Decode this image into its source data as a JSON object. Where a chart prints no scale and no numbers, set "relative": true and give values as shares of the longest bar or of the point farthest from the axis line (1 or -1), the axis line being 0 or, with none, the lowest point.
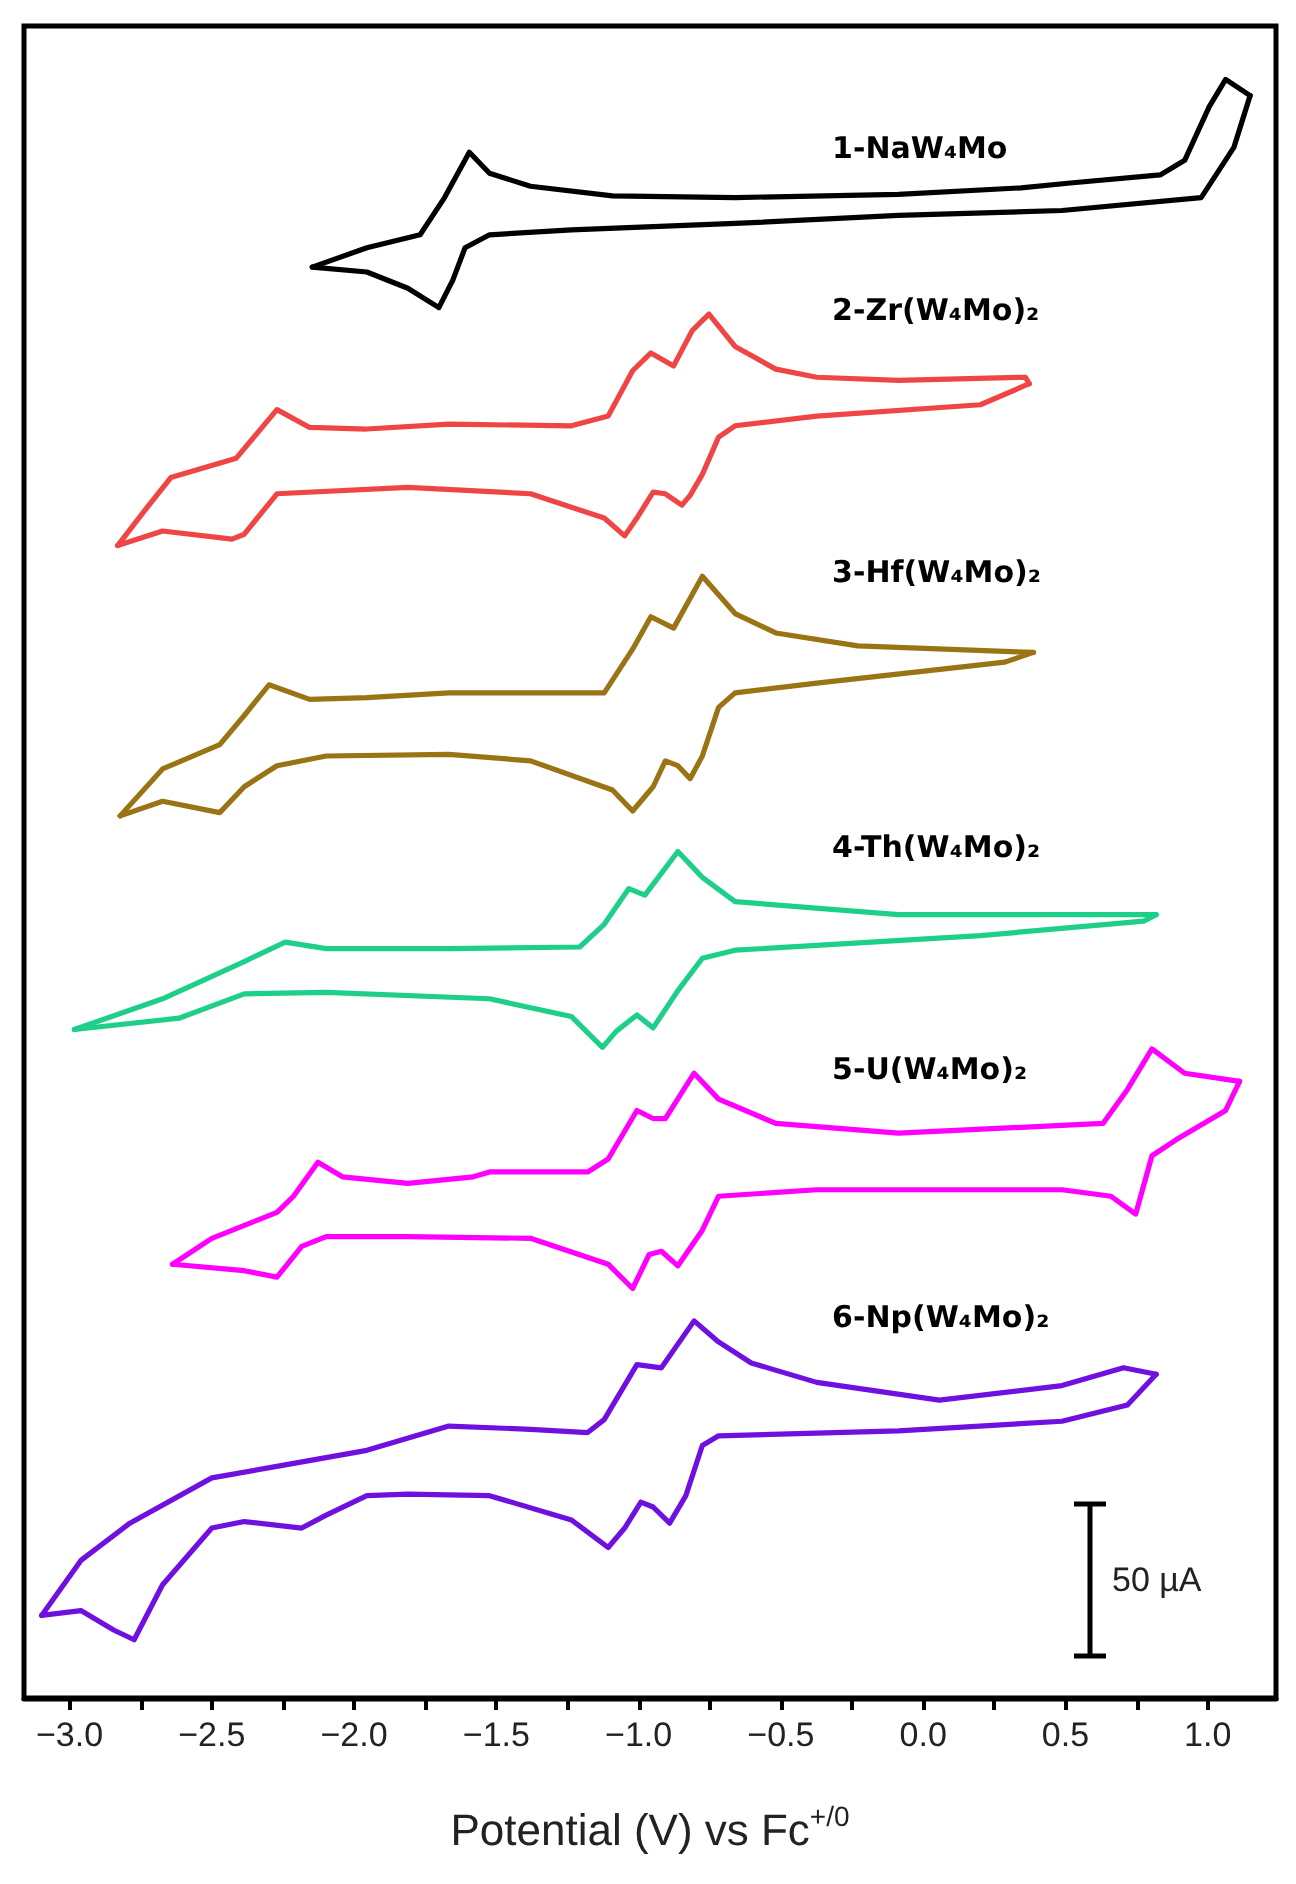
{
  "chart_data": {
    "type": "line",
    "relative": true,
    "xlabel": "Potential (V) vs Fc$^{+/0}$",
    "xlim": [
      -3.16,
      1.24
    ],
    "xticks": [
      {
        "value": -3,
        "label": "−3.0"
      },
      {
        "value": -2.75,
        "label": null
      },
      {
        "value": -2.5,
        "label": "−2.5"
      },
      {
        "value": -2.25,
        "label": null
      },
      {
        "value": -2,
        "label": "−2.0"
      },
      {
        "value": -1.75,
        "label": null
      },
      {
        "value": -1.5,
        "label": "−1.5"
      },
      {
        "value": -1.25,
        "label": null
      },
      {
        "value": -1,
        "label": "−1.0"
      },
      {
        "value": -0.75,
        "label": null
      },
      {
        "value": -0.5,
        "label": "−0.5"
      },
      {
        "value": -0.25,
        "label": null
      },
      {
        "value": 0,
        "label": "0.0"
      },
      {
        "value": 0.25,
        "label": null
      },
      {
        "value": 0.5,
        "label": "0.5"
      },
      {
        "value": 0.75,
        "label": null
      },
      {
        "value": 1,
        "label": "1.0"
      }
    ],
    "grid": false,
    "legend": false,
    "marker": "none",
    "line_style": "solid",
    "annotations": [
      "50 µA"
    ],
    "series": [
      {
        "name": "1-NaW₄Mo",
        "color": "#000000",
        "x": [
          -2.147,
          -1.955,
          -1.768,
          -1.682,
          -1.595,
          -1.524,
          -1.38,
          -1.092,
          -0.661,
          -0.087,
          0.344,
          0.517,
          0.833,
          0.919,
          1.005,
          1.063,
          1.149
        ],
        "values": [
          0.884,
          0.896,
          0.904,
          0.927,
          0.955,
          0.942,
          0.934,
          0.928,
          0.927,
          0.929,
          0.933,
          0.936,
          0.941,
          0.95,
          0.983,
          1,
          0.99
        ]
      },
      {
        "color": "#000000",
        "x": [
          1.149,
          1.092,
          0.977,
          0.488,
          -0.087,
          -0.661,
          -1.236,
          -1.524,
          -1.61,
          -1.653,
          -1.702,
          -1.811,
          -1.955,
          -2.147
        ],
        "values": [
          0.99,
          0.958,
          0.927,
          0.919,
          0.916,
          0.911,
          0.907,
          0.904,
          0.896,
          0.876,
          0.859,
          0.871,
          0.881,
          0.884
        ]
      },
      {
        "name": "2-Zr(W₄Mo)₂",
        "color": "#f04545",
        "x": [
          -2.831,
          -2.73,
          -2.644,
          -2.414,
          -2.271,
          -2.156,
          -1.955,
          -1.667,
          -1.236,
          -1.107,
          -1.021,
          -0.957,
          -0.877,
          -0.811,
          -0.753,
          -0.661,
          -0.518,
          -0.374,
          -0.087,
          0.359,
          0.373
        ],
        "values": [
          0.712,
          0.735,
          0.754,
          0.766,
          0.796,
          0.785,
          0.784,
          0.787,
          0.786,
          0.792,
          0.82,
          0.831,
          0.823,
          0.845,
          0.855,
          0.835,
          0.821,
          0.816,
          0.814,
          0.816,
          0.812
        ]
      },
      {
        "color": "#f04545",
        "x": [
          0.373,
          0.201,
          -0.374,
          -0.661,
          -0.719,
          -0.776,
          -0.819,
          -0.848,
          -0.906,
          -0.949,
          -1.006,
          -1.049,
          -1.121,
          -1.38,
          -1.811,
          -2.271,
          -2.386,
          -2.429,
          -2.673,
          -2.831
        ],
        "values": [
          0.812,
          0.799,
          0.792,
          0.786,
          0.779,
          0.756,
          0.743,
          0.737,
          0.744,
          0.745,
          0.729,
          0.718,
          0.729,
          0.744,
          0.748,
          0.744,
          0.719,
          0.716,
          0.721,
          0.712
        ]
      },
      {
        "name": "3-Hf(W₄Mo)₂",
        "color": "#9a7414",
        "x": [
          -2.822,
          -2.673,
          -2.472,
          -2.386,
          -2.299,
          -2.156,
          -1.955,
          -1.667,
          -1.121,
          -1.021,
          -0.957,
          -0.877,
          -0.776,
          -0.661,
          -0.518,
          -0.23,
          0.388
        ],
        "values": [
          0.545,
          0.574,
          0.589,
          0.607,
          0.626,
          0.617,
          0.618,
          0.621,
          0.621,
          0.648,
          0.668,
          0.661,
          0.693,
          0.67,
          0.658,
          0.65,
          0.646
        ]
      },
      {
        "color": "#9a7414",
        "x": [
          0.388,
          0.287,
          -0.374,
          -0.661,
          -0.719,
          -0.776,
          -0.819,
          -0.862,
          -0.906,
          -0.949,
          -1.021,
          -1.092,
          -1.38,
          -1.667,
          -2.098,
          -2.271,
          -2.386,
          -2.472,
          -2.673,
          -2.822
        ],
        "values": [
          0.646,
          0.64,
          0.627,
          0.621,
          0.612,
          0.582,
          0.568,
          0.576,
          0.579,
          0.563,
          0.548,
          0.561,
          0.579,
          0.583,
          0.582,
          0.576,
          0.563,
          0.547,
          0.554,
          0.545
        ]
      },
      {
        "name": "4-Th(W₄Mo)₂",
        "color": "#1ecf8a",
        "x": [
          -2.983,
          -2.673,
          -2.386,
          -2.242,
          -2.098,
          -1.667,
          -1.207,
          -1.121,
          -1.035,
          -0.978,
          -0.862,
          -0.776,
          -0.661,
          -0.087,
          0.819
        ],
        "values": [
          0.413,
          0.432,
          0.455,
          0.467,
          0.463,
          0.463,
          0.464,
          0.478,
          0.5,
          0.496,
          0.523,
          0.507,
          0.492,
          0.484,
          0.484
        ]
      },
      {
        "color": "#1ecf8a",
        "x": [
          0.819,
          0.775,
          0.201,
          -0.661,
          -0.776,
          -0.862,
          -0.949,
          -1.006,
          -1.078,
          -1.127,
          -1.236,
          -1.524,
          -2.098,
          -2.386,
          -2.615,
          -2.983
        ],
        "values": [
          0.484,
          0.48,
          0.471,
          0.462,
          0.457,
          0.437,
          0.414,
          0.422,
          0.412,
          0.402,
          0.421,
          0.432,
          0.436,
          0.435,
          0.42,
          0.413
        ]
      },
      {
        "name": "5-U(W₄Mo)₂",
        "color": "#ff00ff",
        "x": [
          -2.638,
          -2.5,
          -2.271,
          -2.213,
          -2.127,
          -2.041,
          -1.811,
          -1.581,
          -1.524,
          -1.179,
          -1.107,
          -1.006,
          -0.949,
          -0.906,
          -0.805,
          -0.719,
          -0.518,
          -0.087,
          0.632,
          0.718,
          0.804,
          0.919,
          1.112
        ],
        "values": [
          0.268,
          0.284,
          0.3,
          0.31,
          0.331,
          0.322,
          0.318,
          0.322,
          0.325,
          0.325,
          0.333,
          0.363,
          0.358,
          0.358,
          0.386,
          0.37,
          0.355,
          0.349,
          0.355,
          0.376,
          0.401,
          0.386,
          0.381
        ]
      },
      {
        "color": "#ff00ff",
        "x": [
          1.112,
          1.063,
          0.89,
          0.804,
          0.747,
          0.66,
          0.488,
          -0.374,
          -0.719,
          -0.776,
          -0.862,
          -0.92,
          -0.963,
          -1.021,
          -1.107,
          -1.38,
          -1.811,
          -2.098,
          -2.184,
          -2.271,
          -2.386,
          -2.638
        ],
        "values": [
          0.381,
          0.363,
          0.345,
          0.335,
          0.299,
          0.31,
          0.314,
          0.314,
          0.31,
          0.289,
          0.267,
          0.276,
          0.274,
          0.253,
          0.268,
          0.284,
          0.285,
          0.285,
          0.279,
          0.26,
          0.264,
          0.268
        ]
      },
      {
        "name": "6-Np(W₄Mo)₂",
        "color": "#7010e0",
        "x": [
          -3.098,
          -2.96,
          -2.788,
          -2.5,
          -2.242,
          -1.955,
          -1.667,
          -1.38,
          -1.179,
          -1.121,
          -1.006,
          -0.92,
          -0.805,
          -0.719,
          -0.604,
          -0.374,
          0.057,
          0.488,
          0.704,
          0.819
        ],
        "values": [
          0.051,
          0.085,
          0.108,
          0.136,
          0.144,
          0.153,
          0.168,
          0.166,
          0.164,
          0.172,
          0.206,
          0.204,
          0.233,
          0.22,
          0.207,
          0.195,
          0.184,
          0.193,
          0.204,
          0.2
        ]
      },
      {
        "color": "#7010e0",
        "x": [
          0.819,
          0.718,
          0.488,
          -0.087,
          -0.719,
          -0.776,
          -0.834,
          -0.891,
          -0.949,
          -0.992,
          -1.049,
          -1.107,
          -1.236,
          -1.524,
          -1.811,
          -1.955,
          -2.098,
          -2.184,
          -2.386,
          -2.5,
          -2.673,
          -2.773,
          -2.845,
          -2.96,
          -3.098
        ],
        "values": [
          0.2,
          0.181,
          0.171,
          0.165,
          0.162,
          0.156,
          0.125,
          0.108,
          0.118,
          0.121,
          0.105,
          0.093,
          0.11,
          0.125,
          0.126,
          0.125,
          0.113,
          0.105,
          0.109,
          0.105,
          0.07,
          0.036,
          0.042,
          0.054,
          0.051
        ]
      }
    ]
  }
}
